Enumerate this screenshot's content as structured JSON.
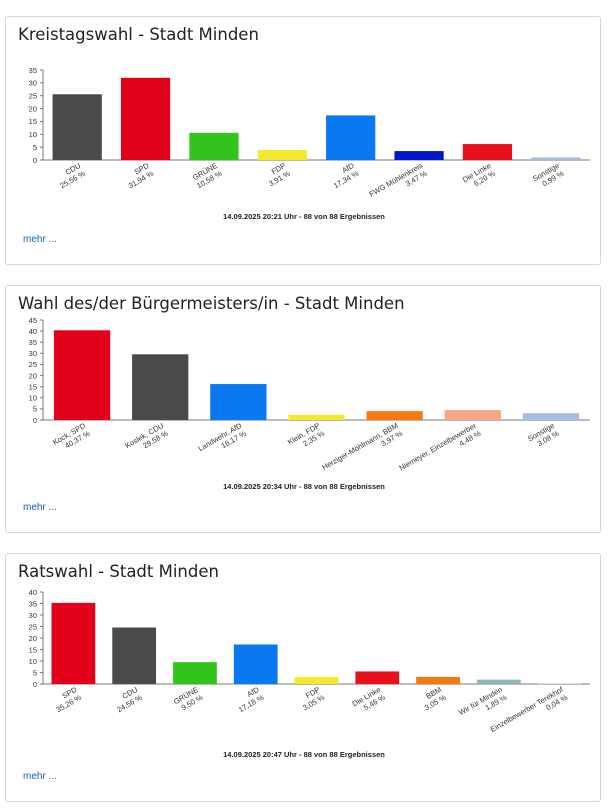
{
  "charts": [
    {
      "title": "Kreistagswahl - Stadt Minden",
      "footer": "14.09.2025 20:21 Uhr - 88 von 88 Ergebnissen",
      "more_label": "mehr ...",
      "chart_data": {
        "type": "bar",
        "title": "Kreistagswahl - Stadt Minden",
        "ylim": [
          0,
          35
        ],
        "yticks": [
          0,
          5,
          10,
          15,
          20,
          25,
          30,
          35
        ],
        "grid": false,
        "categories": [
          "CDU",
          "SPD",
          "GRÜNE",
          "FDP",
          "AfD",
          "FWG Mühlenkreis",
          "Die Linke",
          "Sonstige"
        ],
        "value_labels": [
          "25,56 %",
          "31,94 %",
          "10,58 %",
          "3,91 %",
          "17,34 %",
          "3,47 %",
          "6,20 %",
          "0,99 %"
        ],
        "values": [
          25.56,
          31.94,
          10.58,
          3.91,
          17.34,
          3.47,
          6.2,
          0.99
        ],
        "colors": [
          "#4a4a4a",
          "#e3001b",
          "#32c41c",
          "#f4ea2c",
          "#0a78f0",
          "#0018c8",
          "#e8111b",
          "#a6bce2"
        ]
      }
    },
    {
      "title": "Wahl des/der Bürgermeisters/in - Stadt Minden",
      "footer": "14.09.2025 20:34 Uhr - 88 von 88 Ergebnissen",
      "more_label": "mehr ...",
      "chart_data": {
        "type": "bar",
        "title": "Wahl des/der Bürgermeisters/in - Stadt Minden",
        "ylim": [
          0,
          45
        ],
        "yticks": [
          0,
          5,
          10,
          15,
          20,
          25,
          30,
          35,
          40,
          45
        ],
        "grid": false,
        "categories": [
          "Kock, SPD",
          "Koslek, CDU",
          "Landwehr, AfD",
          "Klein, FDP",
          "Herziger-Möhlmann, BBM",
          "Niemeyer, Einzelbewerber",
          "Sonstige"
        ],
        "value_labels": [
          "40,37 %",
          "29,58 %",
          "16,17 %",
          "2,35 %",
          "3,97 %",
          "4,48 %",
          "3,08 %"
        ],
        "values": [
          40.37,
          29.58,
          16.17,
          2.35,
          3.97,
          4.48,
          3.08
        ],
        "colors": [
          "#e3001b",
          "#4a4a4a",
          "#0a78f0",
          "#f4ea2c",
          "#f5790c",
          "#f9a685",
          "#a6bce2"
        ]
      }
    },
    {
      "title": "Ratswahl - Stadt Minden",
      "footer": "14.09.2025 20:47 Uhr - 88 von 88 Ergebnissen",
      "more_label": "mehr ...",
      "chart_data": {
        "type": "bar",
        "title": "Ratswahl - Stadt Minden",
        "ylim": [
          0,
          40
        ],
        "yticks": [
          0,
          5,
          10,
          15,
          20,
          25,
          30,
          35,
          40
        ],
        "grid": false,
        "categories": [
          "SPD",
          "CDU",
          "GRÜNE",
          "AfD",
          "FDP",
          "Die Linke",
          "BBM",
          "Wir für Minden",
          "Einzelbewerber Terekhof"
        ],
        "value_labels": [
          "35,26 %",
          "24,56 %",
          "9,50 %",
          "17,18 %",
          "3,05 %",
          "5,46 %",
          "3,05 %",
          "1,89 %",
          "0,04 %"
        ],
        "values": [
          35.26,
          24.56,
          9.5,
          17.18,
          3.05,
          5.46,
          3.05,
          1.89,
          0.04
        ],
        "colors": [
          "#e3001b",
          "#4a4a4a",
          "#32c41c",
          "#0a78f0",
          "#f4ea2c",
          "#e8111b",
          "#f5790c",
          "#8fb5b8",
          "#c9c9c9"
        ]
      }
    }
  ]
}
